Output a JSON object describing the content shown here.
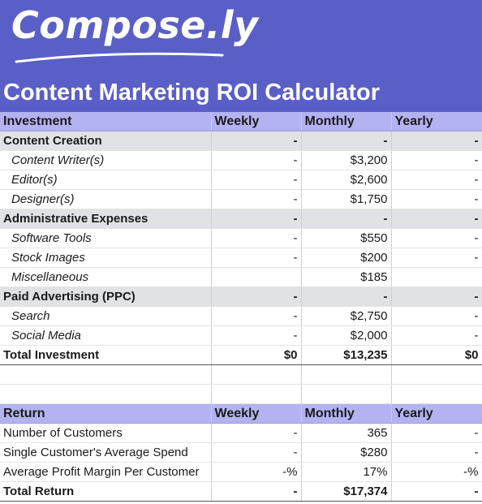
{
  "brand": {
    "logo_text": "Compose.ly",
    "accent": "#5a5fc7",
    "header_row": "#b3b3f2",
    "category_row": "#e1e2e6"
  },
  "title": "Content Marketing ROI Calculator",
  "investment": {
    "headers": [
      "Investment",
      "Weekly",
      "Monthly",
      "Yearly"
    ],
    "rows": [
      {
        "type": "cat",
        "label": "Content Creation",
        "weekly": "-",
        "monthly": "-",
        "yearly": "-"
      },
      {
        "type": "sub",
        "label": "Content Writer(s)",
        "weekly": "-",
        "monthly": "$3,200",
        "yearly": "-"
      },
      {
        "type": "sub",
        "label": "Editor(s)",
        "weekly": "-",
        "monthly": "$2,600",
        "yearly": "-"
      },
      {
        "type": "sub",
        "label": "Designer(s)",
        "weekly": "-",
        "monthly": "$1,750",
        "yearly": "-"
      },
      {
        "type": "cat",
        "label": "Administrative Expenses",
        "weekly": "-",
        "monthly": "-",
        "yearly": "-"
      },
      {
        "type": "sub",
        "label": "Software Tools",
        "weekly": "-",
        "monthly": "$550",
        "yearly": "-"
      },
      {
        "type": "sub",
        "label": "Stock Images",
        "weekly": "-",
        "monthly": "$200",
        "yearly": "-"
      },
      {
        "type": "sub",
        "label": "Miscellaneous",
        "weekly": "",
        "monthly": "$185",
        "yearly": ""
      },
      {
        "type": "cat",
        "label": "Paid Advertising (PPC)",
        "weekly": "-",
        "monthly": "-",
        "yearly": "-"
      },
      {
        "type": "sub",
        "label": "Search",
        "weekly": "-",
        "monthly": "$2,750",
        "yearly": "-"
      },
      {
        "type": "sub",
        "label": "Social Media",
        "weekly": "-",
        "monthly": "$2,000",
        "yearly": "-"
      },
      {
        "type": "total",
        "label": "Total Investment",
        "weekly": "$0",
        "monthly": "$13,235",
        "yearly": "$0"
      }
    ]
  },
  "return": {
    "headers": [
      "Return",
      "Weekly",
      "Monthly",
      "Yearly"
    ],
    "rows": [
      {
        "type": "ret",
        "label": "Number of Customers",
        "weekly": "-",
        "monthly": "365",
        "yearly": "-"
      },
      {
        "type": "ret",
        "label": "Single Customer's Average Spend",
        "weekly": "-",
        "monthly": "$280",
        "yearly": "-"
      },
      {
        "type": "ret",
        "label": "Average Profit Margin Per Customer",
        "weekly": "-%",
        "monthly": "17%",
        "yearly": "-%"
      },
      {
        "type": "total",
        "label": "Total Return",
        "weekly": "-",
        "monthly": "$17,374",
        "yearly": "-"
      }
    ]
  }
}
